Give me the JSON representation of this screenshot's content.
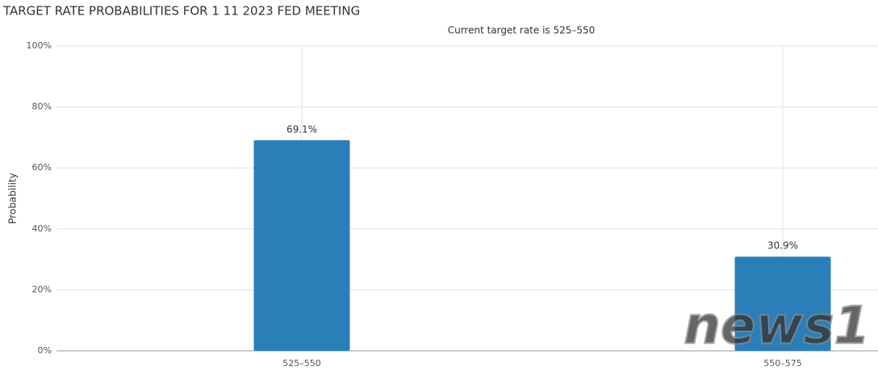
{
  "chart_data": {
    "type": "bar",
    "title": "TARGET RATE PROBABILITIES FOR 1 11 2023 FED MEETING",
    "subtitle": "Current target rate is 525–550",
    "y_label": "Probability",
    "categories": [
      "525–550",
      "550–575"
    ],
    "values": [
      69.1,
      30.9
    ],
    "value_labels": [
      "69.1%",
      "30.9%"
    ],
    "color": "#2b7fb8",
    "ylim": [
      0,
      100
    ],
    "yticks": [
      {
        "value": 0,
        "label": "0%"
      },
      {
        "value": 20,
        "label": "20%"
      },
      {
        "value": 40,
        "label": "40%"
      },
      {
        "value": 60,
        "label": "60%"
      },
      {
        "value": 80,
        "label": "80%"
      },
      {
        "value": 100,
        "label": "100%"
      }
    ],
    "grid": true,
    "watermark": "news1"
  }
}
